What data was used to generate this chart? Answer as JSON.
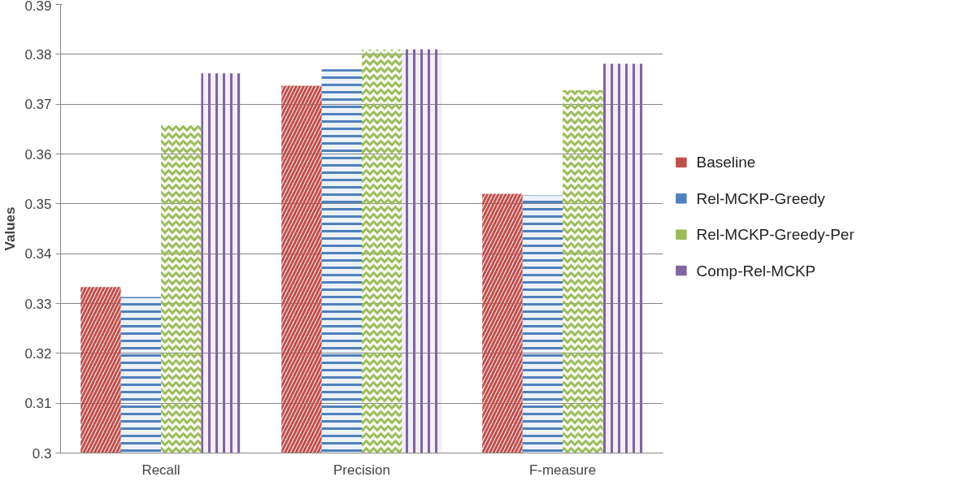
{
  "chart_data": {
    "type": "bar",
    "ylabel": "Values",
    "categories": [
      "Recall",
      "Precision",
      "F-measure"
    ],
    "series": [
      {
        "name": "Baseline",
        "color": "#c0504d",
        "values": [
          0.3333,
          0.3737,
          0.352
        ]
      },
      {
        "name": "Rel-MCKP-Greedy",
        "color": "#4f81bd",
        "values": [
          0.3313,
          0.377,
          0.3517
        ]
      },
      {
        "name": "Rel-MCKP-Greedy-Per",
        "color": "#9bbb59",
        "values": [
          0.3658,
          0.3809,
          0.3728
        ]
      },
      {
        "name": "Comp-Rel-MCKP",
        "color": "#8064a2",
        "values": [
          0.3762,
          0.381,
          0.3781
        ]
      }
    ],
    "ylim": [
      0.3,
      0.39
    ],
    "yticks": [
      0.3,
      0.31,
      0.32,
      0.33,
      0.34,
      0.35,
      0.36,
      0.37,
      0.38,
      0.39
    ],
    "grid": "y",
    "legend": "right"
  }
}
